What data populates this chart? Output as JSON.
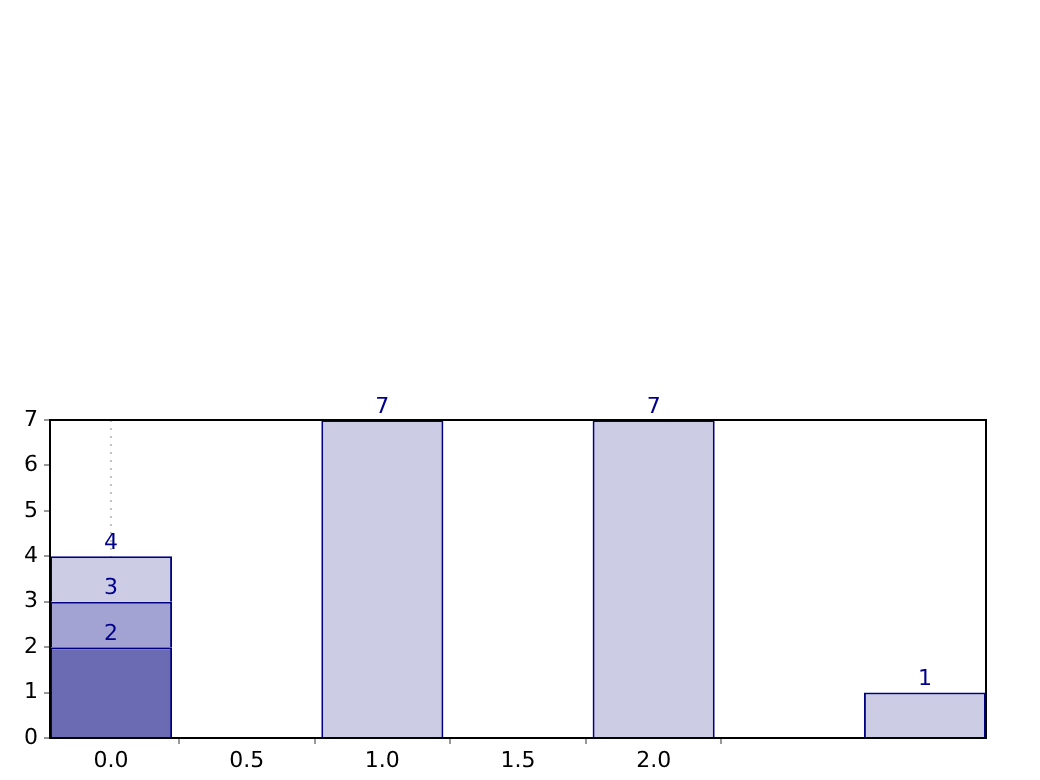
{
  "chart_data": {
    "type": "bar",
    "stacked": true,
    "series": [
      {
        "x": [
          0
        ],
        "color": "#6b6bb3",
        "values": [
          2
        ],
        "value_labels": [
          "2"
        ]
      },
      {
        "x": [
          0
        ],
        "color": "#a3a3d3",
        "values": [
          1
        ]
      },
      {
        "x": [
          0,
          1,
          2,
          3
        ],
        "color": "#cccce4",
        "values": [
          1,
          7,
          7,
          1
        ],
        "value_labels": [
          null,
          "7",
          "7",
          "1"
        ]
      }
    ],
    "annotations": [
      {
        "text": "3",
        "x": 0,
        "y": 3
      },
      {
        "text": "4",
        "x": 0,
        "y": 4
      }
    ],
    "xlim": [
      -0.225,
      3.225
    ],
    "xticks": [
      {
        "value": 0,
        "label": "0.0"
      },
      0.5,
      {
        "value": 1,
        "label": "1.0"
      },
      1.5,
      {
        "value": 2,
        "label": "2.0"
      }
    ],
    "ylim": [
      0,
      7
    ],
    "yticks": [
      0,
      1,
      2,
      3,
      4,
      5,
      6,
      7
    ],
    "ref_lines": [
      {
        "axis": "x",
        "value": 0,
        "line_style": "dotted",
        "color": "#c0c0c0"
      }
    ],
    "grid": false,
    "legend": false
  }
}
